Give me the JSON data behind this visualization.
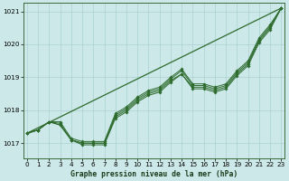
{
  "title": "Graphe pression niveau de la mer (hPa)",
  "background_color": "#cce8e8",
  "grid_color": "#aad0d0",
  "line_color": "#2d6b2d",
  "xlim": [
    -0.3,
    23.3
  ],
  "ylim": [
    1016.55,
    1021.25
  ],
  "yticks": [
    1017,
    1018,
    1019,
    1020,
    1021
  ],
  "xticks": [
    0,
    1,
    2,
    3,
    4,
    5,
    6,
    7,
    8,
    9,
    10,
    11,
    12,
    13,
    14,
    15,
    16,
    17,
    18,
    19,
    20,
    21,
    22,
    23
  ],
  "straight_line": [
    1017.3,
    1021.1
  ],
  "series1": [
    1017.3,
    1017.4,
    1017.65,
    1017.6,
    1017.1,
    1017.0,
    1017.0,
    1017.0,
    1017.85,
    1018.05,
    1018.35,
    1018.55,
    1018.65,
    1018.95,
    1019.2,
    1018.75,
    1018.75,
    1018.65,
    1018.75,
    1019.15,
    1019.45,
    1020.15,
    1020.55,
    1021.1
  ],
  "series2": [
    1017.3,
    1017.4,
    1017.65,
    1017.55,
    1017.1,
    1017.0,
    1017.0,
    1017.0,
    1017.8,
    1018.0,
    1018.3,
    1018.5,
    1018.6,
    1018.9,
    1019.1,
    1018.7,
    1018.7,
    1018.6,
    1018.7,
    1019.1,
    1019.4,
    1020.1,
    1020.5,
    1021.1
  ],
  "series3": [
    1017.3,
    1017.4,
    1017.65,
    1017.55,
    1017.1,
    1016.95,
    1016.95,
    1016.95,
    1017.75,
    1017.95,
    1018.25,
    1018.45,
    1018.55,
    1018.85,
    1019.1,
    1018.65,
    1018.65,
    1018.55,
    1018.65,
    1019.05,
    1019.35,
    1020.05,
    1020.45,
    1021.1
  ],
  "series4": [
    1017.3,
    1017.4,
    1017.65,
    1017.65,
    1017.15,
    1017.05,
    1017.05,
    1017.05,
    1017.9,
    1018.1,
    1018.4,
    1018.6,
    1018.7,
    1019.0,
    1019.25,
    1018.8,
    1018.8,
    1018.7,
    1018.8,
    1019.2,
    1019.5,
    1020.2,
    1020.6,
    1021.1
  ],
  "title_fontsize": 5.8,
  "tick_fontsize": 5.2
}
